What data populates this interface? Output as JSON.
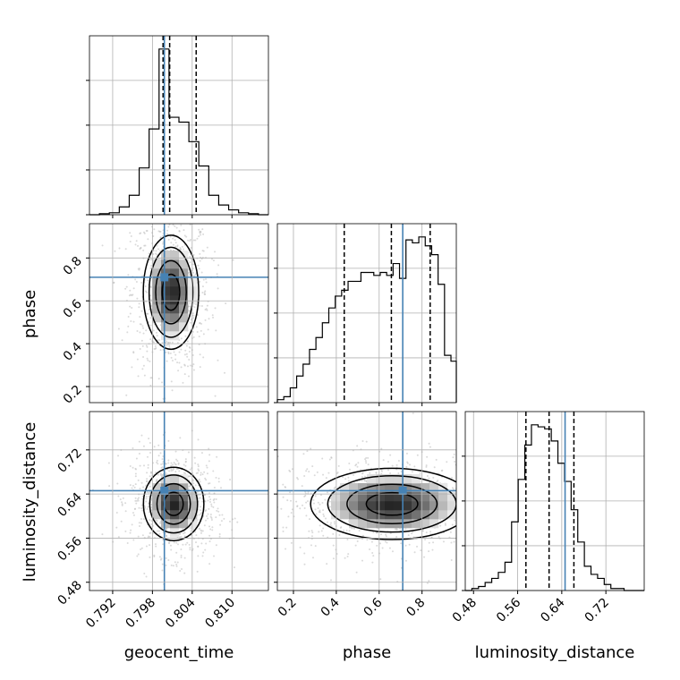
{
  "chart_data": {
    "type": "corner",
    "parameters": [
      "geocent_time",
      "phase",
      "luminosity_distance"
    ],
    "axis_labels": {
      "geocent_time": "geocent_time",
      "phase": "phase",
      "luminosity_distance": "luminosity_distance"
    },
    "ranges": {
      "geocent_time": [
        0.7885,
        0.8155
      ],
      "phase": [
        0.125,
        0.96
      ],
      "luminosity_distance": [
        0.465,
        0.7895
      ]
    },
    "ticks": {
      "geocent_time": [
        0.792,
        0.798,
        0.804,
        0.81
      ],
      "phase": [
        0.2,
        0.4,
        0.6,
        0.8
      ],
      "luminosity_distance": [
        0.48,
        0.56,
        0.64,
        0.72
      ]
    },
    "tick_labels": {
      "geocent_time": [
        "0.792",
        "0.798",
        "0.804",
        "0.810"
      ],
      "phase": [
        "0.2",
        "0.4",
        "0.6",
        "0.8"
      ],
      "luminosity_distance": [
        "0.48",
        "0.56",
        "0.64",
        "0.72"
      ]
    },
    "truths": {
      "geocent_time": 0.7998,
      "phase": 0.71,
      "luminosity_distance": 0.646
    },
    "truth_color": "#4682b4",
    "quantiles": {
      "geocent_time": [
        0.7996,
        0.8006,
        0.8046
      ],
      "phase": [
        0.437,
        0.657,
        0.838
      ],
      "luminosity_distance": [
        0.575,
        0.617,
        0.662
      ]
    },
    "marginals": {
      "geocent_time": {
        "bin_edges": [
          0.7885,
          0.79,
          0.7915,
          0.793,
          0.7945,
          0.796,
          0.7975,
          0.799,
          0.8005,
          0.802,
          0.8035,
          0.805,
          0.8065,
          0.808,
          0.8095,
          0.811,
          0.8125,
          0.814,
          0.8155
        ],
        "counts": [
          0,
          1,
          2,
          8,
          20,
          48,
          88,
          170,
          100,
          95,
          75,
          50,
          20,
          10,
          5,
          2,
          1,
          0
        ]
      },
      "phase": {
        "bin_edges": [
          0.125,
          0.155,
          0.185,
          0.215,
          0.245,
          0.275,
          0.305,
          0.335,
          0.365,
          0.395,
          0.425,
          0.455,
          0.485,
          0.515,
          0.545,
          0.575,
          0.605,
          0.635,
          0.665,
          0.695,
          0.725,
          0.755,
          0.785,
          0.815,
          0.845,
          0.875,
          0.905,
          0.935,
          0.96
        ],
        "counts": [
          1,
          2,
          5,
          9,
          13,
          18,
          22,
          27,
          32,
          36,
          38,
          41,
          41,
          44,
          44,
          43,
          44,
          43,
          47,
          42,
          55,
          54,
          56,
          53,
          50,
          40,
          16,
          14
        ]
      },
      "luminosity_distance": {
        "bin_edges": [
          0.465,
          0.477,
          0.489,
          0.501,
          0.513,
          0.525,
          0.537,
          0.549,
          0.561,
          0.573,
          0.585,
          0.597,
          0.609,
          0.621,
          0.633,
          0.645,
          0.657,
          0.669,
          0.681,
          0.693,
          0.705,
          0.717,
          0.729,
          0.741,
          0.753,
          0.765,
          0.777,
          0.7895
        ],
        "counts": [
          0,
          1,
          2,
          4,
          6,
          9,
          14,
          34,
          55,
          72,
          82,
          81,
          80,
          74,
          63,
          54,
          40,
          24,
          12,
          8,
          6,
          3,
          1,
          1,
          0,
          0,
          0
        ]
      }
    },
    "joint": {
      "phase|geocent_time": {
        "mean": [
          0.8008,
          0.64
        ],
        "std": [
          0.0022,
          0.14
        ],
        "rho": 0.0
      },
      "luminosity_distance|geocent_time": {
        "mean": [
          0.8012,
          0.622
        ],
        "std": [
          0.0024,
          0.035
        ],
        "rho": -0.1
      },
      "luminosity_distance|phase": {
        "mean": [
          0.66,
          0.622
        ],
        "std": [
          0.2,
          0.034
        ],
        "rho": 0.0
      }
    },
    "grid": true,
    "colors": {
      "hist": "#000000",
      "points": "#bbbbbb",
      "grid": "#b0b0b0",
      "frame": "#000000"
    }
  }
}
